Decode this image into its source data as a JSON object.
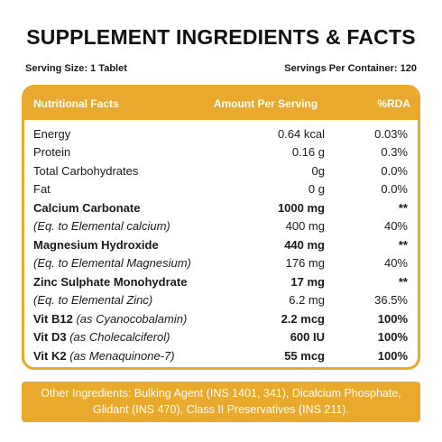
{
  "title": "SUPPLEMENT INGREDIENTS & FACTS",
  "serving_size": "Serving Size: 1 Tablet",
  "servings_per_container": "Servings Per Container: 120",
  "colors": {
    "accent": "#e8a92c",
    "text": "#1a1a1a"
  },
  "table": {
    "headers": {
      "name": "Nutritional Facts",
      "amount": "Amount Per Serving",
      "rda": "%RDA"
    },
    "rows": [
      {
        "name": "Energy",
        "paren": "",
        "amount": "0.64 kcal",
        "rda": "0.03%",
        "style": "normal"
      },
      {
        "name": "Protein",
        "paren": "",
        "amount": "0.16 g",
        "rda": "0.3%",
        "style": "normal"
      },
      {
        "name": "Total Carbohydrates",
        "paren": "",
        "amount": "0g",
        "rda": "0.0%",
        "style": "normal"
      },
      {
        "name": "Fat",
        "paren": "",
        "amount": "0 g",
        "rda": "0.0%",
        "style": "normal"
      },
      {
        "name": "Calcium Carbonate",
        "paren": "",
        "amount": "1000 mg",
        "rda": "**",
        "style": "bold"
      },
      {
        "name": "(Eq. to Elemental calcium)",
        "paren": "",
        "amount": "400 mg",
        "rda": "40%",
        "style": "sub"
      },
      {
        "name": "Magnesium Hydroxide",
        "paren": "",
        "amount": "440 mg",
        "rda": "**",
        "style": "bold"
      },
      {
        "name": "(Eq. to Elemental Magnesium)",
        "paren": "",
        "amount": "176 mg",
        "rda": "40%",
        "style": "sub"
      },
      {
        "name": "Zinc Sulphate Monohydrate",
        "paren": "",
        "amount": "17 mg",
        "rda": "**",
        "style": "bold"
      },
      {
        "name": "(Eq. to Elemental Zinc)",
        "paren": "",
        "amount": "6.2 mg",
        "rda": "36.5%",
        "style": "sub"
      },
      {
        "name": "Vit B12 ",
        "paren": "(as Cyanocobalamin)",
        "amount": "2.2 mcg",
        "rda": "100%",
        "style": "bold"
      },
      {
        "name": "Vit D3 ",
        "paren": "(as Cholecalciferol)",
        "amount": "600 IU",
        "rda": "100%",
        "style": "bold"
      },
      {
        "name": "Vit K2 ",
        "paren": "(as Menaquinone-7)",
        "amount": "55 mcg",
        "rda": "100%",
        "style": "bold"
      }
    ]
  },
  "other_ingredients": "Other Ingredients: Bulking Agent (INS 1401, 341), Dicalcium Phosphate, Glidant (INS 470), Class II Preservatives (INS 211)."
}
